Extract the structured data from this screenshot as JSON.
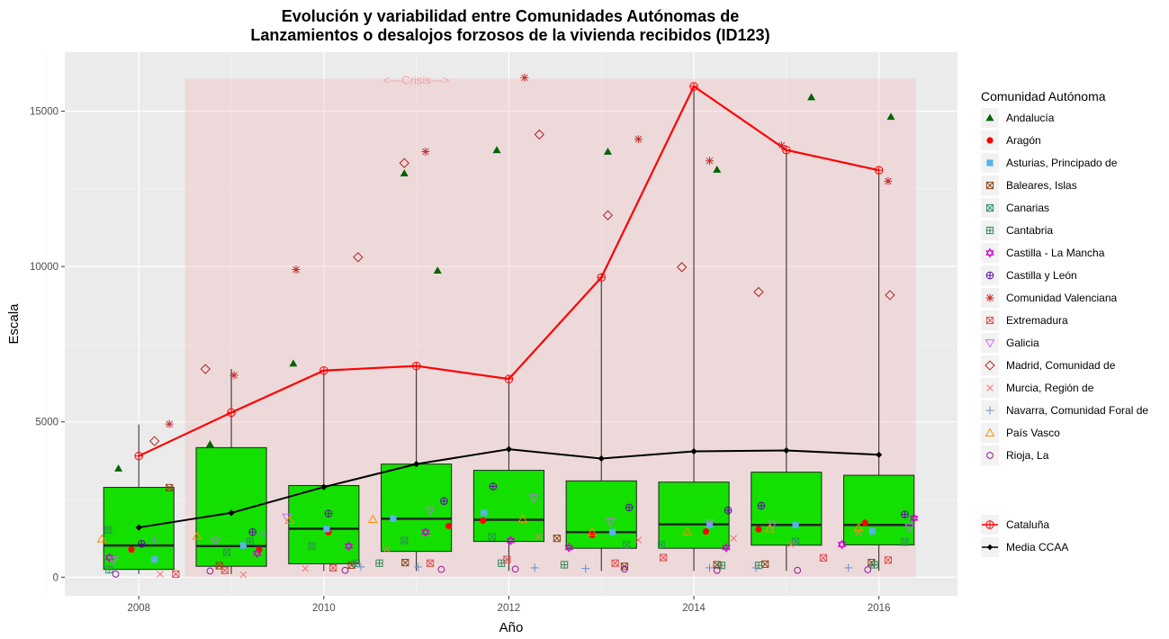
{
  "chart_data": {
    "type": "boxplot",
    "title": "Evolución y variabilidad entre Comunidades Autónomas de",
    "subtitle": "Lanzamientos o desalojos forzosos de la vivienda recibidos (ID123)",
    "xlabel": "Año",
    "ylabel": "Escala",
    "xlim": [
      2007.2,
      2016.85
    ],
    "ylim": [
      -600,
      16900
    ],
    "x_ticks": [
      2008,
      2010,
      2012,
      2014,
      2016
    ],
    "x_tick_labels": [
      "2008",
      "2010",
      "2012",
      "2014",
      "2016"
    ],
    "y_ticks": [
      0,
      5000,
      10000,
      15000
    ],
    "y_tick_labels": [
      "0",
      "5000",
      "10000",
      "15000"
    ],
    "grid": true,
    "crisis_band": {
      "x_start": 2008.5,
      "x_end": 2016.4,
      "y_top": 16050,
      "label": "<---Crisis--->",
      "color": "#f4b6b9"
    },
    "boxes": [
      {
        "year": 2008,
        "whisker_low": 100,
        "q1": 250,
        "median": 1020,
        "q3": 2890,
        "whisker_high": 4920
      },
      {
        "year": 2009,
        "whisker_low": 100,
        "q1": 350,
        "median": 1000,
        "q3": 4170,
        "whisker_high": 6700
      },
      {
        "year": 2010,
        "whisker_low": 200,
        "q1": 430,
        "median": 1560,
        "q3": 2950,
        "whisker_high": 6650
      },
      {
        "year": 2011,
        "whisker_low": 200,
        "q1": 830,
        "median": 1880,
        "q3": 3640,
        "whisker_high": 6800
      },
      {
        "year": 2012,
        "whisker_low": 200,
        "q1": 1150,
        "median": 1850,
        "q3": 3440,
        "whisker_high": 6380
      },
      {
        "year": 2013,
        "whisker_low": 200,
        "q1": 930,
        "median": 1450,
        "q3": 3100,
        "whisker_high": 9650
      },
      {
        "year": 2014,
        "whisker_low": 200,
        "q1": 930,
        "median": 1700,
        "q3": 3060,
        "whisker_high": 15800
      },
      {
        "year": 2015,
        "whisker_low": 200,
        "q1": 1030,
        "median": 1680,
        "q3": 3380,
        "whisker_high": 13750
      },
      {
        "year": 2016,
        "whisker_low": 200,
        "q1": 1040,
        "median": 1680,
        "q3": 3280,
        "whisker_high": 13100
      }
    ],
    "series_lines": [
      {
        "name": "Cataluña",
        "color": "#ff0000",
        "shape": "circle-plus",
        "x": [
          2008,
          2009,
          2010,
          2011,
          2012,
          2013,
          2014,
          2015,
          2016
        ],
        "values": [
          3900,
          5300,
          6650,
          6800,
          6380,
          9650,
          15800,
          13750,
          13100
        ]
      },
      {
        "name": "Media CCAA",
        "color": "#000000",
        "shape": "diamond",
        "x": [
          2008,
          2009,
          2010,
          2011,
          2012,
          2013,
          2014,
          2015,
          2016
        ],
        "values": [
          1600,
          2070,
          2900,
          3640,
          4120,
          3820,
          4050,
          4080,
          3940
        ]
      }
    ],
    "series": [
      {
        "name": "Andalucía",
        "color": "#006400",
        "shape": "triangle-filled",
        "points": [
          [
            2007.78,
            3500
          ],
          [
            2008.77,
            4280
          ],
          [
            2009.67,
            6880
          ],
          [
            2010.87,
            13000
          ],
          [
            2011.23,
            9870
          ],
          [
            2011.87,
            13750
          ],
          [
            2013.07,
            13700
          ],
          [
            2014.25,
            13120
          ],
          [
            2015.27,
            15450
          ],
          [
            2016.13,
            14820
          ]
        ]
      },
      {
        "name": "Aragón",
        "color": "#ff0000",
        "shape": "circle-filled",
        "points": [
          [
            2007.92,
            890
          ],
          [
            2009.3,
            880
          ],
          [
            2010.05,
            1450
          ],
          [
            2011.35,
            1650
          ],
          [
            2011.72,
            1820
          ],
          [
            2012.9,
            1360
          ],
          [
            2014.13,
            1470
          ],
          [
            2014.7,
            1540
          ],
          [
            2015.85,
            1750
          ]
        ]
      },
      {
        "name": "Asturias, Principado de",
        "color": "#56b4e9",
        "shape": "square-filled",
        "points": [
          [
            2008.17,
            570
          ],
          [
            2009.13,
            1020
          ],
          [
            2010.03,
            1550
          ],
          [
            2010.75,
            1880
          ],
          [
            2011.73,
            2070
          ],
          [
            2013.12,
            1450
          ],
          [
            2014.17,
            1680
          ],
          [
            2015.1,
            1680
          ],
          [
            2015.93,
            1480
          ]
        ]
      },
      {
        "name": "Baleares, Islas",
        "color": "#8b4513",
        "shape": "square-cross",
        "points": [
          [
            2008.33,
            2880
          ],
          [
            2008.87,
            370
          ],
          [
            2010.3,
            390
          ],
          [
            2010.88,
            470
          ],
          [
            2012.52,
            1250
          ],
          [
            2013.25,
            350
          ],
          [
            2014.25,
            400
          ],
          [
            2014.77,
            420
          ],
          [
            2015.92,
            470
          ]
        ]
      },
      {
        "name": "Canarias",
        "color": "#2f8f5f",
        "shape": "square-x",
        "points": [
          [
            2007.67,
            1520
          ],
          [
            2008.95,
            800
          ],
          [
            2009.87,
            1000
          ],
          [
            2010.87,
            1180
          ],
          [
            2011.82,
            1300
          ],
          [
            2013.27,
            1050
          ],
          [
            2013.65,
            1050
          ],
          [
            2015.1,
            1150
          ],
          [
            2016.28,
            1130
          ]
        ]
      },
      {
        "name": "Cantabria",
        "color": "#2e8b57",
        "shape": "square-plus",
        "points": [
          [
            2007.68,
            240
          ],
          [
            2009.2,
            1150
          ],
          [
            2010.35,
            450
          ],
          [
            2010.6,
            450
          ],
          [
            2011.92,
            450
          ],
          [
            2012.6,
            400
          ],
          [
            2014.3,
            380
          ],
          [
            2014.7,
            380
          ],
          [
            2015.95,
            400
          ]
        ]
      },
      {
        "name": "Castilla - La Mancha",
        "color": "#cc00cc",
        "shape": "star6",
        "points": [
          [
            2007.68,
            630
          ],
          [
            2009.28,
            770
          ],
          [
            2010.27,
            1000
          ],
          [
            2011.1,
            1450
          ],
          [
            2012.02,
            1180
          ],
          [
            2012.65,
            950
          ],
          [
            2014.35,
            950
          ],
          [
            2015.6,
            1050
          ],
          [
            2016.38,
            1900
          ]
        ]
      },
      {
        "name": "Castilla y León",
        "color": "#5a0fa0",
        "shape": "circle-plus",
        "points": [
          [
            2008.03,
            1070
          ],
          [
            2009.23,
            1450
          ],
          [
            2010.05,
            2050
          ],
          [
            2011.3,
            2450
          ],
          [
            2011.83,
            2920
          ],
          [
            2013.3,
            2240
          ],
          [
            2014.37,
            2150
          ],
          [
            2014.73,
            2300
          ],
          [
            2016.28,
            2020
          ]
        ]
      },
      {
        "name": "Comunidad Valenciana",
        "color": "#c62828",
        "shape": "asterisk",
        "points": [
          [
            2008.33,
            4930
          ],
          [
            2009.03,
            6500
          ],
          [
            2009.7,
            9900
          ],
          [
            2011.1,
            13700
          ],
          [
            2012.17,
            16080
          ],
          [
            2013.4,
            14100
          ],
          [
            2014.17,
            13400
          ],
          [
            2014.95,
            13900
          ],
          [
            2016.1,
            12750
          ]
        ]
      },
      {
        "name": "Extremadura",
        "color": "#e05050",
        "shape": "square-x",
        "points": [
          [
            2008.4,
            100
          ],
          [
            2008.93,
            220
          ],
          [
            2010.1,
            300
          ],
          [
            2011.15,
            450
          ],
          [
            2011.98,
            570
          ],
          [
            2013.15,
            450
          ],
          [
            2013.67,
            630
          ],
          [
            2015.4,
            620
          ],
          [
            2016.1,
            550
          ]
        ]
      },
      {
        "name": "Galicia",
        "color": "#cc66ff",
        "shape": "triangle-down",
        "points": [
          [
            2007.73,
            550
          ],
          [
            2008.83,
            1180
          ],
          [
            2009.6,
            1930
          ],
          [
            2011.15,
            2150
          ],
          [
            2012.27,
            2550
          ],
          [
            2013.1,
            1780
          ],
          [
            2014.17,
            1750
          ],
          [
            2014.85,
            1700
          ],
          [
            2016.33,
            1600
          ]
        ]
      },
      {
        "name": "Madrid, Comunidad de",
        "color": "#b22222",
        "shape": "diamond-open",
        "points": [
          [
            2008.17,
            4380
          ],
          [
            2008.72,
            6700
          ],
          [
            2010.37,
            10300
          ],
          [
            2010.87,
            13330
          ],
          [
            2012.33,
            14250
          ],
          [
            2013.07,
            11650
          ],
          [
            2013.87,
            9980
          ],
          [
            2014.7,
            9180
          ],
          [
            2016.12,
            9080
          ]
        ]
      },
      {
        "name": "Murcia, Región de",
        "color": "#ff6f6f",
        "shape": "x",
        "points": [
          [
            2008.23,
            100
          ],
          [
            2009.13,
            80
          ],
          [
            2009.8,
            280
          ],
          [
            2010.68,
            900
          ],
          [
            2012.32,
            1300
          ],
          [
            2013.4,
            1200
          ],
          [
            2014.43,
            1250
          ],
          [
            2015.05,
            1050
          ],
          [
            2015.78,
            1450
          ]
        ]
      },
      {
        "name": "Navarra, Comunidad Foral de",
        "color": "#6a8fd0",
        "shape": "plus",
        "points": [
          [
            2008.17,
            1200
          ],
          [
            2009.33,
            1400
          ],
          [
            2010.4,
            330
          ],
          [
            2011.02,
            330
          ],
          [
            2012.28,
            300
          ],
          [
            2012.83,
            280
          ],
          [
            2014.17,
            300
          ],
          [
            2014.67,
            300
          ],
          [
            2015.67,
            300
          ]
        ]
      },
      {
        "name": "País Vasco",
        "color": "#ff8c00",
        "shape": "triangle-open",
        "points": [
          [
            2007.6,
            1230
          ],
          [
            2008.63,
            1320
          ],
          [
            2009.63,
            1830
          ],
          [
            2010.53,
            1860
          ],
          [
            2012.15,
            1870
          ],
          [
            2012.9,
            1450
          ],
          [
            2013.93,
            1460
          ],
          [
            2014.82,
            1560
          ],
          [
            2015.78,
            1590
          ]
        ]
      },
      {
        "name": "Rioja, La",
        "color": "#8b1a9b",
        "shape": "circle-open",
        "points": [
          [
            2007.75,
            100
          ],
          [
            2008.77,
            200
          ],
          [
            2010.23,
            220
          ],
          [
            2011.27,
            250
          ],
          [
            2012.07,
            260
          ],
          [
            2013.25,
            260
          ],
          [
            2014.25,
            220
          ],
          [
            2015.12,
            220
          ],
          [
            2015.88,
            240
          ]
        ]
      }
    ],
    "legend_title": "Comunidad Autónoma",
    "legend_position": "right"
  }
}
